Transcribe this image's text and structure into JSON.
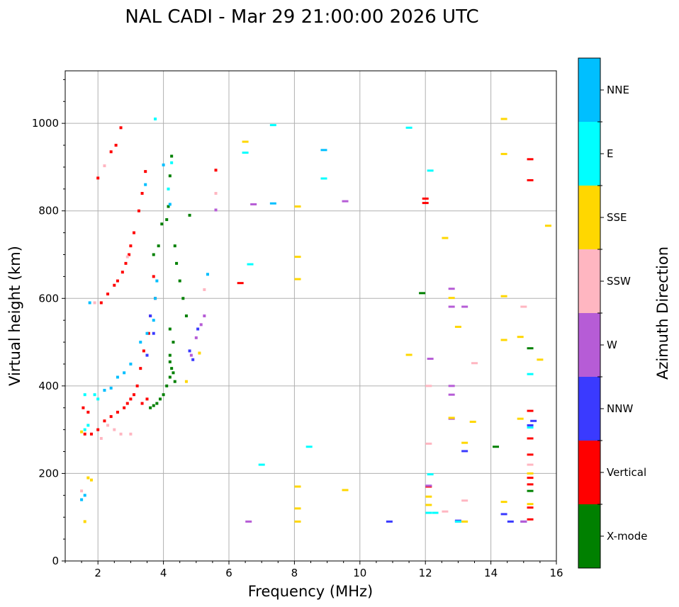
{
  "chart_data": {
    "type": "scatter",
    "title": "NAL CADI - Mar 29 21:00:00 2026 UTC",
    "xlabel": "Frequency (MHz)",
    "ylabel": "Virtual height (km)",
    "xlim": [
      1,
      16
    ],
    "ylim": [
      0,
      1120
    ],
    "xticks": [
      2,
      4,
      6,
      8,
      10,
      12,
      14,
      16
    ],
    "yticks": [
      0,
      200,
      400,
      600,
      800,
      1000
    ],
    "grid": true,
    "colorbar": {
      "label": "Azimuth Direction",
      "categories": [
        {
          "name": "X-mode",
          "color": "#008000"
        },
        {
          "name": "Vertical",
          "color": "#ff0000"
        },
        {
          "name": "NNW",
          "color": "#3a3aff"
        },
        {
          "name": "W",
          "color": "#b65cd6"
        },
        {
          "name": "SSW",
          "color": "#ffb6c1"
        },
        {
          "name": "SSE",
          "color": "#ffd700"
        },
        {
          "name": "E",
          "color": "#00ffff"
        },
        {
          "name": "NNE",
          "color": "#00bfff"
        }
      ]
    },
    "series": [
      {
        "name": "X-mode",
        "points": [
          [
            4.25,
            925
          ],
          [
            4.2,
            880
          ],
          [
            4.15,
            810
          ],
          [
            4.1,
            780
          ],
          [
            3.95,
            770
          ],
          [
            3.85,
            720
          ],
          [
            3.7,
            700
          ],
          [
            4.35,
            720
          ],
          [
            4.4,
            680
          ],
          [
            4.5,
            640
          ],
          [
            4.6,
            600
          ],
          [
            4.7,
            560
          ],
          [
            4.2,
            530
          ],
          [
            4.3,
            500
          ],
          [
            4.2,
            470
          ],
          [
            4.25,
            440
          ],
          [
            4.2,
            420
          ],
          [
            4.1,
            400
          ],
          [
            4.0,
            380
          ],
          [
            3.9,
            370
          ],
          [
            3.8,
            360
          ],
          [
            3.7,
            355
          ],
          [
            3.6,
            350
          ],
          [
            4.3,
            430
          ],
          [
            4.35,
            410
          ],
          [
            4.2,
            455
          ],
          [
            14.15,
            261
          ],
          [
            15.2,
            486
          ],
          [
            15.2,
            160
          ],
          [
            11.9,
            612
          ],
          [
            4.8,
            790
          ]
        ]
      },
      {
        "name": "Vertical",
        "points": [
          [
            2.7,
            990
          ],
          [
            2.55,
            950
          ],
          [
            2.4,
            935
          ],
          [
            2.0,
            875
          ],
          [
            3.45,
            890
          ],
          [
            3.35,
            840
          ],
          [
            3.25,
            800
          ],
          [
            3.1,
            750
          ],
          [
            3.0,
            720
          ],
          [
            2.95,
            700
          ],
          [
            2.85,
            680
          ],
          [
            2.75,
            660
          ],
          [
            2.6,
            640
          ],
          [
            2.5,
            630
          ],
          [
            2.3,
            610
          ],
          [
            2.1,
            590
          ],
          [
            3.7,
            650
          ],
          [
            3.75,
            600
          ],
          [
            3.6,
            560
          ],
          [
            3.55,
            520
          ],
          [
            3.4,
            480
          ],
          [
            3.3,
            440
          ],
          [
            3.2,
            400
          ],
          [
            3.1,
            380
          ],
          [
            3.0,
            370
          ],
          [
            2.9,
            360
          ],
          [
            2.8,
            350
          ],
          [
            2.6,
            340
          ],
          [
            2.4,
            330
          ],
          [
            2.2,
            320
          ],
          [
            2.0,
            300
          ],
          [
            1.8,
            290
          ],
          [
            1.6,
            290
          ],
          [
            1.55,
            350
          ],
          [
            1.7,
            340
          ],
          [
            3.35,
            360
          ],
          [
            3.5,
            370
          ],
          [
            5.6,
            893
          ],
          [
            6.35,
            635
          ],
          [
            12.0,
            828
          ],
          [
            12.0,
            818
          ],
          [
            15.2,
            918
          ],
          [
            15.2,
            870
          ],
          [
            15.2,
            343
          ],
          [
            15.2,
            280
          ],
          [
            15.2,
            243
          ],
          [
            15.2,
            190
          ],
          [
            15.2,
            175
          ],
          [
            15.2,
            122
          ],
          [
            15.2,
            95
          ],
          [
            12.1,
            170
          ]
        ]
      },
      {
        "name": "NNW",
        "points": [
          [
            3.6,
            560
          ],
          [
            3.5,
            470
          ],
          [
            3.7,
            520
          ],
          [
            4.8,
            480
          ],
          [
            4.9,
            460
          ],
          [
            5.05,
            530
          ],
          [
            10.9,
            90
          ],
          [
            13.2,
            251
          ],
          [
            13.0,
            92
          ],
          [
            14.4,
            107
          ],
          [
            14.6,
            90
          ],
          [
            15.0,
            90
          ],
          [
            15.2,
            310
          ],
          [
            15.3,
            320
          ]
        ]
      },
      {
        "name": "W",
        "points": [
          [
            5.6,
            802
          ],
          [
            6.75,
            815
          ],
          [
            9.55,
            822
          ],
          [
            6.6,
            90
          ],
          [
            5.25,
            560
          ],
          [
            5.15,
            540
          ],
          [
            5.0,
            510
          ],
          [
            4.85,
            470
          ],
          [
            12.15,
            462
          ],
          [
            12.1,
            172
          ],
          [
            12.8,
            622
          ],
          [
            12.8,
            581
          ],
          [
            13.2,
            581
          ],
          [
            12.8,
            400
          ],
          [
            12.8,
            380
          ],
          [
            12.8,
            325
          ],
          [
            13.0,
            90
          ],
          [
            15.0,
            90
          ]
        ]
      },
      {
        "name": "SSW",
        "points": [
          [
            2.2,
            903
          ],
          [
            5.6,
            840
          ],
          [
            2.9,
            695
          ],
          [
            1.9,
            590
          ],
          [
            2.3,
            310
          ],
          [
            2.5,
            300
          ],
          [
            2.7,
            290
          ],
          [
            3.0,
            290
          ],
          [
            2.1,
            280
          ],
          [
            5.25,
            620
          ],
          [
            12.1,
            400
          ],
          [
            12.1,
            268
          ],
          [
            12.6,
            113
          ],
          [
            13.2,
            138
          ],
          [
            13.5,
            452
          ],
          [
            15.0,
            581
          ],
          [
            15.2,
            220
          ],
          [
            1.5,
            160
          ]
        ]
      },
      {
        "name": "SSE",
        "points": [
          [
            6.5,
            958
          ],
          [
            8.1,
            810
          ],
          [
            8.1,
            695
          ],
          [
            8.1,
            644
          ],
          [
            1.5,
            295
          ],
          [
            1.7,
            190
          ],
          [
            1.8,
            185
          ],
          [
            1.6,
            90
          ],
          [
            5.1,
            475
          ],
          [
            4.7,
            410
          ],
          [
            11.5,
            471
          ],
          [
            12.6,
            738
          ],
          [
            12.8,
            601
          ],
          [
            12.8,
            327
          ],
          [
            13.0,
            535
          ],
          [
            13.2,
            270
          ],
          [
            13.45,
            318
          ],
          [
            13.2,
            90
          ],
          [
            12.1,
            147
          ],
          [
            12.1,
            128
          ],
          [
            14.4,
            1010
          ],
          [
            14.4,
            930
          ],
          [
            14.4,
            605
          ],
          [
            14.4,
            505
          ],
          [
            14.4,
            135
          ],
          [
            14.9,
            512
          ],
          [
            14.9,
            325
          ],
          [
            15.5,
            460
          ],
          [
            15.75,
            766
          ],
          [
            8.1,
            170
          ],
          [
            8.1,
            120
          ],
          [
            8.1,
            90
          ],
          [
            9.55,
            162
          ],
          [
            15.2,
            130
          ],
          [
            15.2,
            200
          ]
        ]
      },
      {
        "name": "E",
        "points": [
          [
            3.75,
            1010
          ],
          [
            6.5,
            933
          ],
          [
            7.35,
            996
          ],
          [
            8.9,
            874
          ],
          [
            11.5,
            990
          ],
          [
            12.15,
            892
          ],
          [
            12.15,
            198
          ],
          [
            12.1,
            110
          ],
          [
            12.3,
            110
          ],
          [
            13.0,
            90
          ],
          [
            15.2,
            427
          ],
          [
            15.2,
            305
          ],
          [
            7.0,
            220
          ],
          [
            8.45,
            261
          ],
          [
            1.6,
            300
          ],
          [
            1.7,
            310
          ],
          [
            1.9,
            380
          ],
          [
            2.0,
            370
          ],
          [
            1.6,
            380
          ],
          [
            6.65,
            678
          ],
          [
            4.15,
            850
          ],
          [
            4.25,
            910
          ]
        ]
      },
      {
        "name": "NNE",
        "points": [
          [
            3.45,
            860
          ],
          [
            4.0,
            905
          ],
          [
            4.2,
            815
          ],
          [
            7.35,
            817
          ],
          [
            8.9,
            939
          ],
          [
            1.75,
            590
          ],
          [
            2.6,
            420
          ],
          [
            2.8,
            430
          ],
          [
            3.0,
            450
          ],
          [
            3.3,
            500
          ],
          [
            3.5,
            520
          ],
          [
            3.7,
            550
          ],
          [
            3.75,
            600
          ],
          [
            3.8,
            640
          ],
          [
            2.2,
            390
          ],
          [
            2.4,
            395
          ],
          [
            1.6,
            150
          ],
          [
            1.5,
            140
          ],
          [
            5.35,
            655
          ]
        ]
      }
    ]
  }
}
